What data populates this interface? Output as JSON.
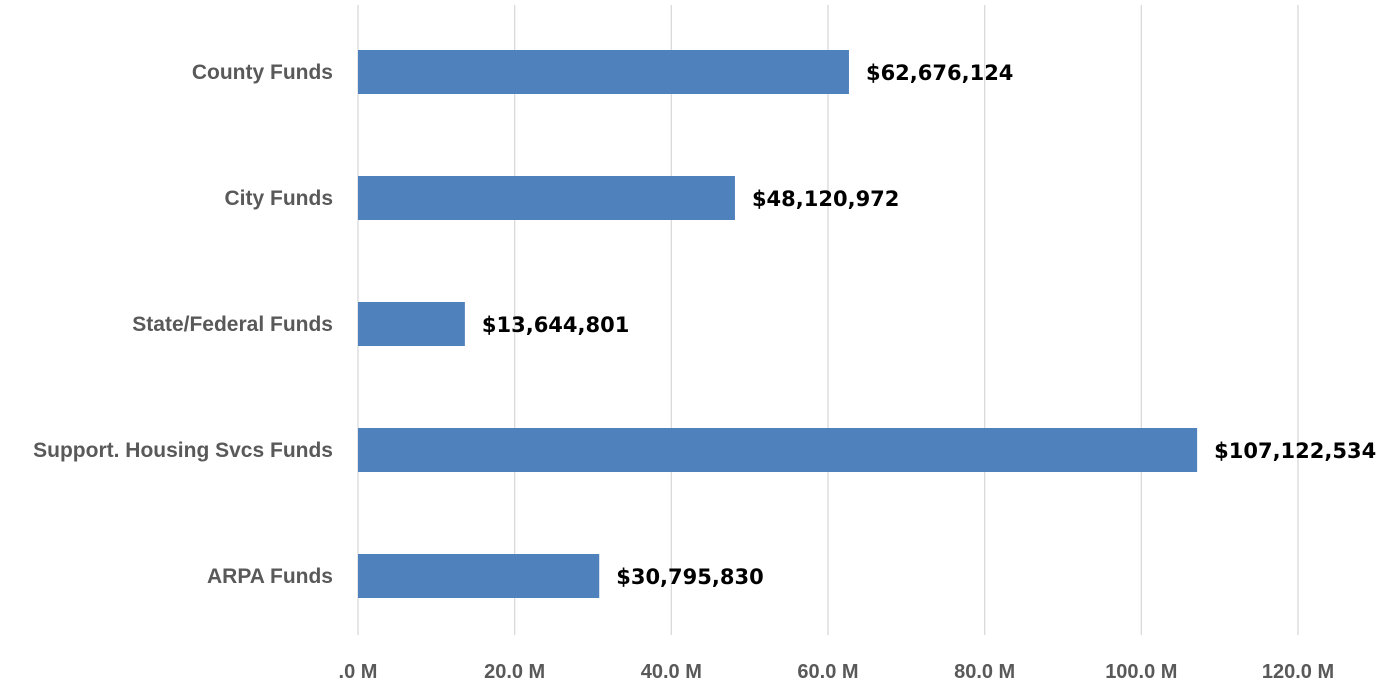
{
  "chart_data": {
    "type": "bar",
    "orientation": "horizontal",
    "title": "",
    "xlabel": "",
    "ylabel": "",
    "categories": [
      "County Funds",
      "City Funds",
      "State/Federal Funds",
      "Support. Housing Svcs Funds",
      "ARPA Funds"
    ],
    "values": [
      62676124,
      48120972,
      13644801,
      107122534,
      30795830
    ],
    "data_labels": [
      "$62,676,124",
      "$48,120,972",
      "$13,644,801",
      "$107,122,534",
      "$30,795,830"
    ],
    "xlim": [
      0,
      120000000
    ],
    "x_ticks": [
      0,
      20000000,
      40000000,
      60000000,
      80000000,
      100000000,
      120000000
    ],
    "x_tick_labels": [
      ".0 M",
      "20.0 M",
      "40.0 M",
      "60.0 M",
      "80.0 M",
      "100.0 M",
      "120.0 M"
    ],
    "grid": true,
    "legend": "none",
    "colors": {
      "bar": "#4f81bd",
      "grid": "#d9d9d9",
      "category_text": "#595959",
      "tick_text": "#595959",
      "data_label_text": "#000000"
    }
  }
}
